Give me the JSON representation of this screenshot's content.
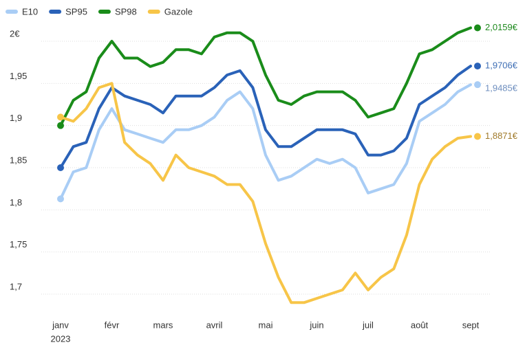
{
  "chart_data": {
    "type": "line",
    "categories": [
      "janv",
      null,
      null,
      null,
      "févr",
      null,
      null,
      null,
      "mars",
      null,
      null,
      null,
      "avril",
      null,
      null,
      null,
      "mai",
      null,
      null,
      null,
      "juin",
      null,
      null,
      null,
      "juil",
      null,
      null,
      null,
      "août",
      null,
      null,
      null,
      "sept"
    ],
    "year_label": "2023",
    "series": [
      {
        "name": "E10",
        "color": "#a9cdf5",
        "label_color": "#6f8fbf",
        "last_label": "1,9485€",
        "values": [
          1.813,
          1.845,
          1.85,
          1.895,
          1.92,
          1.895,
          1.89,
          1.885,
          1.88,
          1.895,
          1.895,
          1.9,
          1.91,
          1.93,
          1.94,
          1.92,
          1.865,
          1.835,
          1.84,
          1.85,
          1.86,
          1.855,
          1.86,
          1.85,
          1.82,
          1.825,
          1.83,
          1.855,
          1.905,
          1.915,
          1.925,
          1.94,
          1.9485
        ]
      },
      {
        "name": "SP95",
        "color": "#2a62b8",
        "label_color": "#3f6fb5",
        "last_label": "1,9706€",
        "values": [
          1.85,
          1.875,
          1.88,
          1.92,
          1.945,
          1.935,
          1.93,
          1.925,
          1.915,
          1.935,
          1.935,
          1.935,
          1.945,
          1.96,
          1.965,
          1.945,
          1.895,
          1.875,
          1.875,
          1.885,
          1.895,
          1.895,
          1.895,
          1.89,
          1.865,
          1.865,
          1.87,
          1.885,
          1.925,
          1.935,
          1.945,
          1.96,
          1.9706
        ]
      },
      {
        "name": "SP98",
        "color": "#1a8c1a",
        "label_color": "#1e8a1e",
        "last_label": "2,0159€",
        "values": [
          1.9,
          1.93,
          1.94,
          1.98,
          2.0,
          1.98,
          1.98,
          1.97,
          1.975,
          1.99,
          1.99,
          1.985,
          2.005,
          2.01,
          2.01,
          2.0,
          1.96,
          1.93,
          1.925,
          1.935,
          1.94,
          1.94,
          1.94,
          1.93,
          1.91,
          1.915,
          1.92,
          1.95,
          1.985,
          1.99,
          2.0,
          2.01,
          2.0159
        ]
      },
      {
        "name": "Gazole",
        "color": "#f7c548",
        "label_color": "#a07a2a",
        "last_label": "1,8871€",
        "values": [
          1.91,
          1.905,
          1.92,
          1.945,
          1.95,
          1.88,
          1.865,
          1.855,
          1.835,
          1.865,
          1.85,
          1.845,
          1.84,
          1.83,
          1.83,
          1.81,
          1.76,
          1.72,
          1.69,
          1.69,
          1.695,
          1.7,
          1.705,
          1.725,
          1.705,
          1.72,
          1.73,
          1.77,
          1.83,
          1.86,
          1.875,
          1.885,
          1.8871
        ]
      }
    ],
    "ylim": [
      1.68,
      2.03
    ],
    "yticks": [
      {
        "value": 1.7,
        "label": "1,7"
      },
      {
        "value": 1.75,
        "label": "1,75"
      },
      {
        "value": 1.8,
        "label": "1,8"
      },
      {
        "value": 1.85,
        "label": "1,85"
      },
      {
        "value": 1.9,
        "label": "1,9"
      },
      {
        "value": 1.95,
        "label": "1,95"
      },
      {
        "value": 2,
        "label": "2€"
      }
    ],
    "grid": true
  }
}
